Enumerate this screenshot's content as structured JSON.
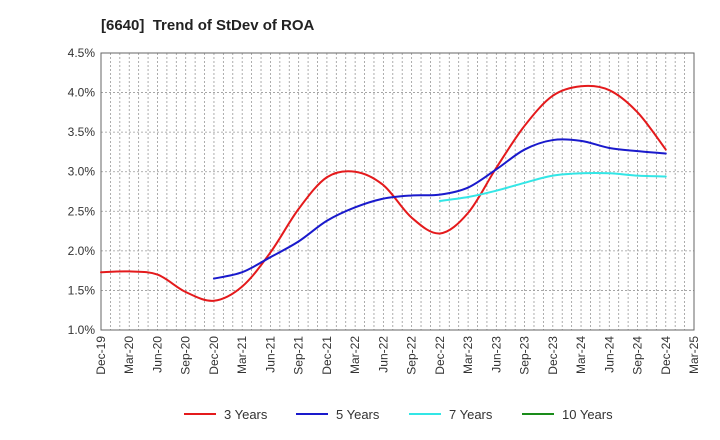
{
  "chart_data": {
    "type": "line",
    "title": "[6640]  Trend of StDev of ROA",
    "x_ticks": [
      "Dec-19",
      "Mar-20",
      "Jun-20",
      "Sep-20",
      "Dec-20",
      "Mar-21",
      "Jun-21",
      "Sep-21",
      "Dec-21",
      "Mar-22",
      "Jun-22",
      "Sep-22",
      "Dec-22",
      "Mar-23",
      "Jun-23",
      "Sep-23",
      "Dec-23",
      "Mar-24",
      "Jun-24",
      "Sep-24",
      "Dec-24",
      "Mar-25"
    ],
    "y_ticks": [
      "1.0%",
      "1.5%",
      "2.0%",
      "2.5%",
      "3.0%",
      "3.5%",
      "4.0%",
      "4.5%"
    ],
    "ylim": [
      1.0,
      4.5
    ],
    "y_unit": "%",
    "grid": true,
    "legend_position": "bottom",
    "series": [
      {
        "name": "3 Years",
        "color": "#e41a1c",
        "points": [
          [
            "Dec-19",
            1.73
          ],
          [
            "Mar-20",
            1.74
          ],
          [
            "Jun-20",
            1.7
          ],
          [
            "Sep-20",
            1.48
          ],
          [
            "Dec-20",
            1.37
          ],
          [
            "Mar-21",
            1.55
          ],
          [
            "Jun-21",
            1.98
          ],
          [
            "Sep-21",
            2.53
          ],
          [
            "Dec-21",
            2.93
          ],
          [
            "Mar-22",
            3.0
          ],
          [
            "Jun-22",
            2.83
          ],
          [
            "Sep-22",
            2.42
          ],
          [
            "Dec-22",
            2.22
          ],
          [
            "Mar-23",
            2.48
          ],
          [
            "Jun-23",
            3.05
          ],
          [
            "Sep-23",
            3.58
          ],
          [
            "Dec-23",
            3.96
          ],
          [
            "Mar-24",
            4.08
          ],
          [
            "Jun-24",
            4.03
          ],
          [
            "Sep-24",
            3.75
          ],
          [
            "Dec-24",
            3.28
          ]
        ]
      },
      {
        "name": "5 Years",
        "color": "#1a1acc",
        "points": [
          [
            "Dec-20",
            1.65
          ],
          [
            "Mar-21",
            1.73
          ],
          [
            "Jun-21",
            1.92
          ],
          [
            "Sep-21",
            2.12
          ],
          [
            "Dec-21",
            2.38
          ],
          [
            "Mar-22",
            2.55
          ],
          [
            "Jun-22",
            2.66
          ],
          [
            "Sep-22",
            2.7
          ],
          [
            "Dec-22",
            2.71
          ],
          [
            "Mar-23",
            2.8
          ],
          [
            "Jun-23",
            3.03
          ],
          [
            "Sep-23",
            3.28
          ],
          [
            "Dec-23",
            3.4
          ],
          [
            "Mar-24",
            3.39
          ],
          [
            "Jun-24",
            3.3
          ],
          [
            "Sep-24",
            3.26
          ],
          [
            "Dec-24",
            3.23
          ]
        ]
      },
      {
        "name": "7 Years",
        "color": "#33e6e6",
        "points": [
          [
            "Dec-22",
            2.63
          ],
          [
            "Mar-23",
            2.68
          ],
          [
            "Jun-23",
            2.76
          ],
          [
            "Sep-23",
            2.86
          ],
          [
            "Dec-23",
            2.95
          ],
          [
            "Mar-24",
            2.98
          ],
          [
            "Jun-24",
            2.98
          ],
          [
            "Sep-24",
            2.95
          ],
          [
            "Dec-24",
            2.94
          ]
        ]
      },
      {
        "name": "10 Years",
        "color": "#1a8c1a",
        "points": []
      }
    ]
  }
}
